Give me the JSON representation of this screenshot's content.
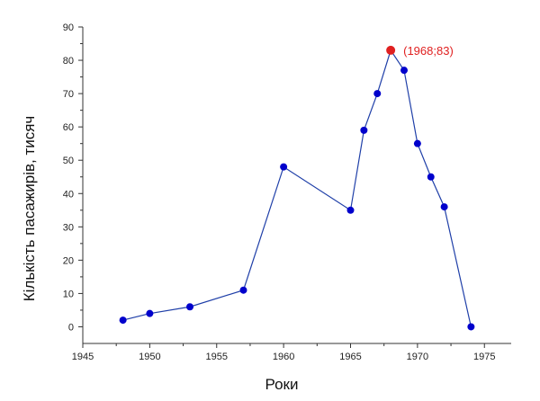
{
  "chart_data": {
    "type": "line",
    "xlabel": "Роки",
    "ylabel": "Кількість пасажирів, тисяч",
    "xlim": [
      1945,
      1977
    ],
    "ylim": [
      -5,
      90
    ],
    "xticks": [
      1945,
      1950,
      1955,
      1960,
      1965,
      1970,
      1975
    ],
    "yticks": [
      0,
      10,
      20,
      30,
      40,
      50,
      60,
      70,
      80,
      90
    ],
    "grid": false,
    "series": [
      {
        "x": [
          1948,
          1950,
          1953,
          1957,
          1960,
          1965,
          1966,
          1967,
          1968,
          1969,
          1970,
          1971,
          1972,
          1974
        ],
        "y": [
          2,
          4,
          6,
          11,
          48,
          35,
          59,
          70,
          83,
          77,
          55,
          45,
          36,
          0
        ],
        "color": "#0000cc",
        "line_color": "#1f3fa8"
      }
    ],
    "highlight": {
      "x": 1968,
      "y": 83,
      "label": "(1968;83)",
      "color": "#e02020"
    }
  }
}
